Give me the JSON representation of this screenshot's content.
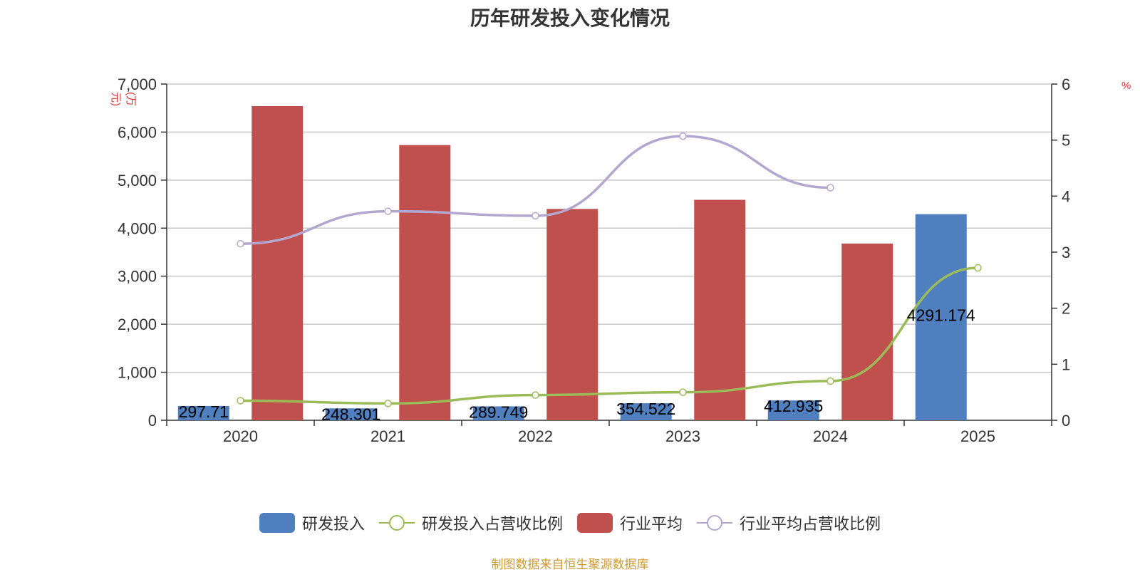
{
  "chart_data": {
    "type": "bar",
    "title": "历年研发投入变化情况",
    "ylabel_left": "(万元)",
    "ylabel_right": "%",
    "categories": [
      "2020",
      "2021",
      "2022",
      "2023",
      "2024",
      "2025"
    ],
    "ylim_left": [
      0,
      7000
    ],
    "yticks_left": [
      0,
      1000,
      2000,
      3000,
      4000,
      5000,
      6000,
      7000
    ],
    "ytick_labels_left": [
      "0",
      "1,000",
      "2,000",
      "3,000",
      "4,000",
      "5,000",
      "6,000",
      "7,000"
    ],
    "ylim_right": [
      0,
      6
    ],
    "yticks_right": [
      0,
      1,
      2,
      3,
      4,
      5,
      6
    ],
    "series": [
      {
        "name": "研发投入",
        "type": "bar",
        "axis": "left",
        "color": "#4f7fbf",
        "values": [
          297.71,
          248.301,
          289.749,
          354.522,
          412.935,
          4291.174
        ],
        "labels": [
          "297.71",
          "248.301",
          "289.749",
          "354.522",
          "412.935",
          "4291.174"
        ]
      },
      {
        "name": "研发投入占营收比例",
        "type": "line",
        "axis": "right",
        "color": "#9bbb59",
        "values": [
          0.35,
          0.3,
          0.45,
          0.5,
          0.7,
          2.72
        ]
      },
      {
        "name": "行业平均",
        "type": "bar",
        "axis": "left",
        "color": "#c0504d",
        "values": [
          6540,
          5730,
          4400,
          4590,
          3680,
          null
        ]
      },
      {
        "name": "行业平均占营收比例",
        "type": "line",
        "axis": "right",
        "color": "#b3a7d0",
        "values": [
          3.15,
          3.73,
          3.65,
          5.07,
          4.15,
          null
        ]
      }
    ],
    "legend_position": "bottom",
    "grid": true
  },
  "source": "制图数据来自恒生聚源数据库"
}
